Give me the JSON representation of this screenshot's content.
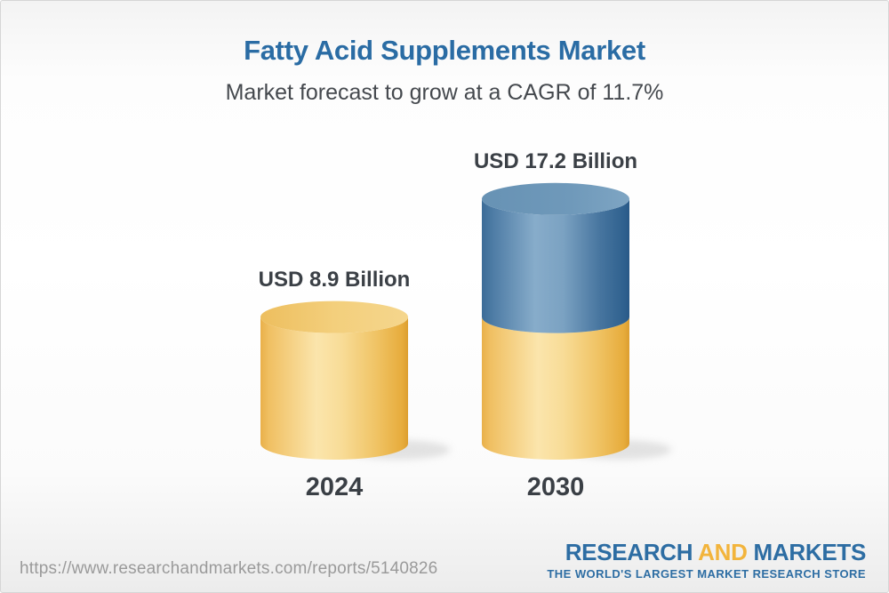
{
  "header": {
    "title": "Fatty Acid Supplements Market",
    "subtitle": "Market forecast to grow at a CAGR of 11.7%"
  },
  "chart_data": {
    "type": "bar",
    "subtype": "3d-stacked-cylinder",
    "title": "Fatty Acid Supplements Market",
    "subtitle": "Market forecast to grow at a CAGR of 11.7%",
    "cagr_percent": 11.7,
    "unit": "USD Billion",
    "categories": [
      "2024",
      "2030"
    ],
    "values": [
      8.9,
      17.2
    ],
    "value_labels": [
      "USD 8.9 Billion",
      "USD 17.2 Billion"
    ],
    "legend": "none",
    "gridlines": false,
    "bars": [
      {
        "category": "2024",
        "value_label": "USD 8.9 Billion",
        "total": 8.9,
        "segments": [
          {
            "name": "market-2024",
            "value": 8.9,
            "palette": "gold"
          }
        ]
      },
      {
        "category": "2030",
        "value_label": "USD 17.2 Billion",
        "total": 17.2,
        "segments": [
          {
            "name": "market-2024-base",
            "value": 8.9,
            "palette": "gold"
          },
          {
            "name": "growth-to-2030",
            "value": 8.3,
            "palette": "blue"
          }
        ]
      }
    ],
    "colors": {
      "gold": "#F0C466",
      "blue": "#4F7DA6",
      "label_text": "#3B4046",
      "title_blue": "#2A6CA4"
    }
  },
  "footer": {
    "url": "https://www.researchandmarkets.com/reports/5140826",
    "logo": {
      "research": "RESEARCH",
      "and": "AND",
      "markets": "MARKETS",
      "tagline": "THE WORLD'S LARGEST MARKET RESEARCH STORE"
    },
    "colors": {
      "logo_blue": "#2D6DA3",
      "logo_gold": "#F2B43C"
    }
  }
}
